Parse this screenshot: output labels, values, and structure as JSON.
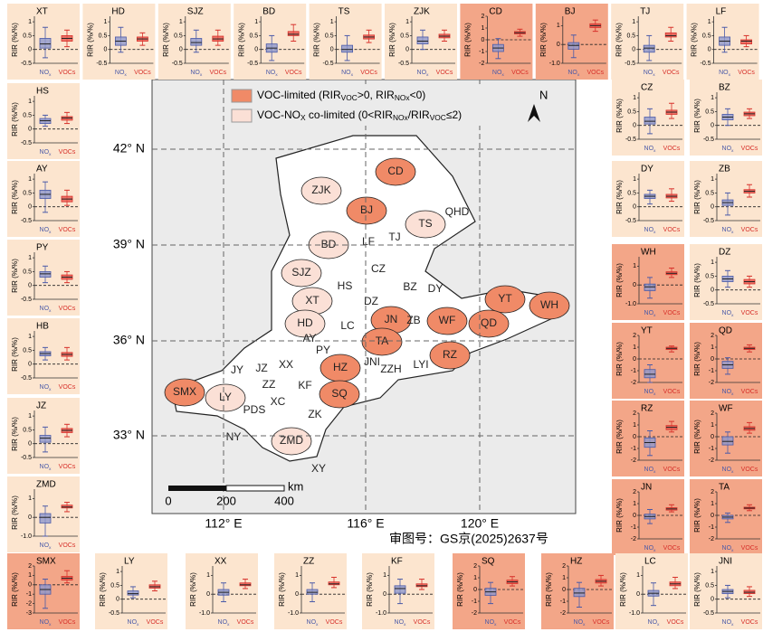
{
  "map": {
    "lat_labels": [
      "42° N",
      "39° N",
      "36° N",
      "33° N"
    ],
    "lon_labels": [
      "112° E",
      "116° E",
      "120° E"
    ],
    "north": "N",
    "legend": [
      {
        "color": "#f08a67",
        "parts": [
          "VOC-limited (RIR",
          "VOC",
          ">0, RIR",
          "NOx",
          "<0)"
        ]
      },
      {
        "color": "#fbe0d6",
        "parts": [
          "VOC-NO",
          "X",
          " co-limited (0<RIR",
          "NOx",
          "/RIR",
          "VOC",
          "≤2)"
        ]
      }
    ],
    "scale": {
      "ticks": [
        0,
        200,
        400
      ],
      "unit": "km"
    },
    "approval": "审图号：GS京(2025)2637号",
    "cities": [
      {
        "name": "CD",
        "color": "#f08a67"
      },
      {
        "name": "ZJK",
        "color": "#fbe0d6"
      },
      {
        "name": "BJ",
        "color": "#f08a67"
      },
      {
        "name": "QHD",
        "color": "#ffffff"
      },
      {
        "name": "TS",
        "color": "#fbe0d6"
      },
      {
        "name": "LF",
        "color": "#ffffff"
      },
      {
        "name": "TJ",
        "color": "#ffffff"
      },
      {
        "name": "BD",
        "color": "#fbe0d6"
      },
      {
        "name": "CZ",
        "color": "#ffffff"
      },
      {
        "name": "SJZ",
        "color": "#fbe0d6"
      },
      {
        "name": "XT",
        "color": "#fbe0d6"
      },
      {
        "name": "HS",
        "color": "#ffffff"
      },
      {
        "name": "BZ",
        "color": "#ffffff"
      },
      {
        "name": "DY",
        "color": "#ffffff"
      },
      {
        "name": "YT",
        "color": "#f08a67"
      },
      {
        "name": "WH",
        "color": "#f08a67"
      },
      {
        "name": "DZ",
        "color": "#ffffff"
      },
      {
        "name": "HD",
        "color": "#fbe0d6"
      },
      {
        "name": "LC",
        "color": "#ffffff"
      },
      {
        "name": "JN",
        "color": "#f08a67"
      },
      {
        "name": "ZB",
        "color": "#ffffff"
      },
      {
        "name": "WF",
        "color": "#f08a67"
      },
      {
        "name": "QD",
        "color": "#f08a67"
      },
      {
        "name": "TA",
        "color": "#f08a67"
      },
      {
        "name": "AY",
        "color": "#ffffff"
      },
      {
        "name": "PY",
        "color": "#ffffff"
      },
      {
        "name": "XX",
        "color": "#ffffff"
      },
      {
        "name": "JY",
        "color": "#ffffff"
      },
      {
        "name": "JZ",
        "color": "#ffffff"
      },
      {
        "name": "ZZ",
        "color": "#ffffff"
      },
      {
        "name": "KF",
        "color": "#ffffff"
      },
      {
        "name": "HZ",
        "color": "#f08a67"
      },
      {
        "name": "JNI",
        "color": "#ffffff"
      },
      {
        "name": "ZZH",
        "color": "#ffffff"
      },
      {
        "name": "LYI",
        "color": "#ffffff"
      },
      {
        "name": "RZ",
        "color": "#f08a67"
      },
      {
        "name": "SMX",
        "color": "#f08a67"
      },
      {
        "name": "LY",
        "color": "#fbe0d6"
      },
      {
        "name": "SQ",
        "color": "#f08a67"
      },
      {
        "name": "PDS",
        "color": "#ffffff"
      },
      {
        "name": "XC",
        "color": "#ffffff"
      },
      {
        "name": "ZK",
        "color": "#ffffff"
      },
      {
        "name": "NY",
        "color": "#ffffff"
      },
      {
        "name": "ZMD",
        "color": "#fbe0d6"
      },
      {
        "name": "XY",
        "color": "#ffffff"
      }
    ]
  },
  "y_label": "RIR (%/%)",
  "box_labels": [
    {
      "parts": [
        "NO",
        "x"
      ],
      "color": "#4a5aa8",
      "fill": "#8d97cc"
    },
    {
      "parts": [
        "VOCs"
      ],
      "color": "#d7302a",
      "fill": "#e8554c"
    }
  ],
  "panels": [
    {
      "name": "XT",
      "color": "#fce5cf",
      "ylim": [
        -0.5,
        1.2
      ],
      "yticks": [
        -0.5,
        0,
        0.5,
        1
      ],
      "nox": [
        -0.3,
        0.05,
        0.2,
        0.4,
        0.8
      ],
      "vocs": [
        0.1,
        0.3,
        0.4,
        0.5,
        0.7
      ]
    },
    {
      "name": "HD",
      "color": "#fce5cf",
      "ylim": [
        -0.5,
        1.2
      ],
      "yticks": [
        -0.5,
        0,
        0.5,
        1
      ],
      "nox": [
        -0.1,
        0.15,
        0.3,
        0.45,
        0.8
      ],
      "vocs": [
        0.15,
        0.3,
        0.38,
        0.45,
        0.6
      ]
    },
    {
      "name": "SJZ",
      "color": "#fce5cf",
      "ylim": [
        -0.5,
        1.2
      ],
      "yticks": [
        -0.5,
        0,
        0.5,
        1
      ],
      "nox": [
        -0.1,
        0.15,
        0.25,
        0.4,
        0.7
      ],
      "vocs": [
        0.15,
        0.3,
        0.38,
        0.48,
        0.7
      ]
    },
    {
      "name": "BD",
      "color": "#fce5cf",
      "ylim": [
        -0.5,
        1.2
      ],
      "yticks": [
        -0.5,
        0,
        0.5,
        1
      ],
      "nox": [
        -0.4,
        -0.1,
        0.05,
        0.2,
        0.5
      ],
      "vocs": [
        0.3,
        0.5,
        0.55,
        0.65,
        0.9
      ]
    },
    {
      "name": "TS",
      "color": "#fce5cf",
      "ylim": [
        -0.5,
        1.2
      ],
      "yticks": [
        -0.5,
        0,
        0.5,
        1
      ],
      "nox": [
        -0.4,
        -0.1,
        0.0,
        0.15,
        0.5
      ],
      "vocs": [
        0.25,
        0.38,
        0.45,
        0.52,
        0.7
      ]
    },
    {
      "name": "ZJK",
      "color": "#fce5cf",
      "ylim": [
        -0.5,
        1.2
      ],
      "yticks": [
        -0.5,
        0,
        0.5,
        1
      ],
      "nox": [
        0,
        0.2,
        0.3,
        0.45,
        0.7
      ],
      "vocs": [
        0.3,
        0.42,
        0.48,
        0.55,
        0.7
      ]
    },
    {
      "name": "CD",
      "color": "#f3a688",
      "ylim": [
        -2,
        2
      ],
      "yticks": [
        -2,
        -1,
        0,
        1,
        2
      ],
      "nox": [
        -1.6,
        -1.0,
        -0.7,
        -0.4,
        0.1
      ],
      "vocs": [
        0.3,
        0.5,
        0.6,
        0.7,
        0.9
      ]
    },
    {
      "name": "BJ",
      "color": "#f3a688",
      "ylim": [
        -1,
        1.5
      ],
      "yticks": [
        {
          "value": -1,
          "label": "-1.0"
        },
        0,
        1
      ],
      "nox": [
        -0.7,
        -0.25,
        -0.05,
        0.1,
        0.5
      ],
      "vocs": [
        0.7,
        0.9,
        1.0,
        1.1,
        1.3
      ]
    },
    {
      "name": "TJ",
      "color": "#fce5cf",
      "ylim": [
        -0.5,
        1.2
      ],
      "yticks": [
        -0.5,
        0,
        0.5,
        1
      ],
      "nox": [
        -0.4,
        -0.1,
        0.05,
        0.15,
        0.5
      ],
      "vocs": [
        0.3,
        0.45,
        0.5,
        0.6,
        0.8
      ]
    },
    {
      "name": "LF",
      "color": "#fce5cf",
      "ylim": [
        -0.5,
        1.2
      ],
      "yticks": [
        -0.5,
        0,
        0.5,
        1
      ],
      "nox": [
        -0.1,
        0.15,
        0.3,
        0.45,
        0.8
      ],
      "vocs": [
        0.1,
        0.2,
        0.3,
        0.35,
        0.5
      ]
    },
    {
      "name": "HS",
      "color": "#fce5cf",
      "ylim": [
        -0.5,
        1.2
      ],
      "yticks": [
        -0.5,
        0,
        0.5,
        1
      ],
      "nox": [
        0.1,
        0.2,
        0.3,
        0.38,
        0.5
      ],
      "vocs": [
        0.2,
        0.32,
        0.4,
        0.45,
        0.6
      ]
    },
    {
      "name": "AY",
      "color": "#fce5cf",
      "ylim": [
        -0.5,
        1.2
      ],
      "yticks": [
        -0.5,
        0,
        0.5,
        1
      ],
      "nox": [
        -0.2,
        0.3,
        0.45,
        0.6,
        0.9
      ],
      "vocs": [
        0.05,
        0.18,
        0.28,
        0.38,
        0.6
      ]
    },
    {
      "name": "PY",
      "color": "#fce5cf",
      "ylim": [
        -0.5,
        1.2
      ],
      "yticks": [
        -0.5,
        0,
        0.5,
        1
      ],
      "nox": [
        0.1,
        0.3,
        0.42,
        0.5,
        0.7
      ],
      "vocs": [
        0.1,
        0.22,
        0.3,
        0.38,
        0.5
      ]
    },
    {
      "name": "HB",
      "color": "#fce5cf",
      "ylim": [
        -0.5,
        1.2
      ],
      "yticks": [
        -0.5,
        0,
        0.5,
        1
      ],
      "nox": [
        0.15,
        0.3,
        0.38,
        0.45,
        0.6
      ],
      "vocs": [
        0.15,
        0.28,
        0.35,
        0.42,
        0.6
      ]
    },
    {
      "name": "JZ",
      "color": "#fce5cf",
      "ylim": [
        -0.5,
        1.2
      ],
      "yticks": [
        -0.5,
        0,
        0.5,
        1
      ],
      "nox": [
        -0.3,
        0.05,
        0.2,
        0.3,
        0.6
      ],
      "vocs": [
        0.25,
        0.4,
        0.48,
        0.55,
        0.7
      ]
    },
    {
      "name": "ZMD",
      "color": "#fce5cf",
      "ylim": [
        -1,
        1.5
      ],
      "yticks": [
        {
          "value": -1,
          "label": "-1.0"
        },
        0,
        1
      ],
      "nox": [
        -1.0,
        -0.3,
        0.0,
        0.2,
        0.6
      ],
      "vocs": [
        0.3,
        0.5,
        0.55,
        0.65,
        0.8
      ]
    },
    {
      "name": "CZ",
      "color": "#fce5cf",
      "ylim": [
        -0.5,
        1.2
      ],
      "yticks": [
        -0.5,
        0,
        0.5,
        1
      ],
      "nox": [
        -0.3,
        0.05,
        0.15,
        0.3,
        0.6
      ],
      "vocs": [
        0.25,
        0.4,
        0.48,
        0.55,
        0.8
      ]
    },
    {
      "name": "BZ",
      "color": "#fce5cf",
      "ylim": [
        -0.5,
        1.2
      ],
      "yticks": [
        -0.5,
        0,
        0.5,
        1
      ],
      "nox": [
        0.0,
        0.2,
        0.3,
        0.4,
        0.6
      ],
      "vocs": [
        0.25,
        0.35,
        0.42,
        0.48,
        0.6
      ]
    },
    {
      "name": "DY",
      "color": "#fce5cf",
      "ylim": [
        -0.5,
        1.2
      ],
      "yticks": [
        -0.5,
        0,
        0.5,
        1
      ],
      "nox": [
        0.1,
        0.3,
        0.38,
        0.45,
        0.6
      ],
      "vocs": [
        0.2,
        0.32,
        0.38,
        0.45,
        0.65
      ]
    },
    {
      "name": "ZB",
      "color": "#fce5cf",
      "ylim": [
        -0.5,
        1.2
      ],
      "yticks": [
        -0.5,
        0,
        0.5,
        1
      ],
      "nox": [
        -0.3,
        0.05,
        0.15,
        0.25,
        0.5
      ],
      "vocs": [
        0.35,
        0.5,
        0.56,
        0.62,
        0.8
      ]
    },
    {
      "name": "WH",
      "color": "#f3a688",
      "ylim": [
        -1,
        1.5
      ],
      "yticks": [
        {
          "value": -1,
          "label": "-1.0"
        },
        0,
        1
      ],
      "nox": [
        -0.7,
        -0.3,
        -0.1,
        0.05,
        0.4
      ],
      "vocs": [
        0.4,
        0.55,
        0.62,
        0.7,
        0.9
      ]
    },
    {
      "name": "DZ",
      "color": "#fce5cf",
      "ylim": [
        -0.5,
        1.2
      ],
      "yticks": [
        -0.5,
        0,
        0.5,
        1
      ],
      "nox": [
        0.1,
        0.3,
        0.4,
        0.5,
        0.7
      ],
      "vocs": [
        0.1,
        0.22,
        0.3,
        0.38,
        0.5
      ]
    },
    {
      "name": "YT",
      "color": "#f3a688",
      "ylim": [
        -2,
        2
      ],
      "yticks": [
        -2,
        -1,
        0,
        1,
        2
      ],
      "nox": [
        -2,
        -1.6,
        -1.3,
        -0.9,
        -0.5
      ],
      "vocs": [
        0.6,
        0.8,
        0.9,
        1.0,
        1.1
      ]
    },
    {
      "name": "QD",
      "color": "#f3a688",
      "ylim": [
        -2,
        2
      ],
      "yticks": [
        -2,
        -1,
        0,
        1,
        2
      ],
      "nox": [
        -1.3,
        -0.8,
        -0.5,
        -0.2,
        0.1
      ],
      "vocs": [
        0.6,
        0.8,
        0.9,
        1.0,
        1.2
      ]
    },
    {
      "name": "RZ",
      "color": "#f3a688",
      "ylim": [
        -2,
        2
      ],
      "yticks": [
        -2,
        -1,
        0,
        1,
        2
      ],
      "nox": [
        -1.6,
        -0.9,
        -0.5,
        -0.1,
        0.5
      ],
      "vocs": [
        0.4,
        0.6,
        0.8,
        0.95,
        1.3
      ]
    },
    {
      "name": "WF",
      "color": "#f3a688",
      "ylim": [
        -2,
        2
      ],
      "yticks": [
        -2,
        -1,
        0,
        1,
        2
      ],
      "nox": [
        -1.4,
        -0.7,
        -0.4,
        0.0,
        0.4
      ],
      "vocs": [
        0.3,
        0.55,
        0.7,
        0.85,
        1.2
      ]
    },
    {
      "name": "JN",
      "color": "#f3a688",
      "ylim": [
        -2,
        2
      ],
      "yticks": [
        -2,
        -1,
        0,
        1,
        2
      ],
      "nox": [
        -0.7,
        -0.3,
        -0.1,
        0.1,
        0.5
      ],
      "vocs": [
        0.3,
        0.45,
        0.55,
        0.65,
        0.9
      ]
    },
    {
      "name": "TA",
      "color": "#f3a688",
      "ylim": [
        -2,
        2
      ],
      "yticks": [
        -2,
        -1,
        0,
        1,
        2
      ],
      "nox": [
        -0.6,
        -0.3,
        -0.15,
        0.0,
        0.2
      ],
      "vocs": [
        0.4,
        0.55,
        0.62,
        0.7,
        0.9
      ]
    },
    {
      "name": "SMX",
      "color": "#f3a688",
      "ylim": [
        -3,
        2
      ],
      "yticks": [
        -3,
        -2,
        -1,
        0,
        1,
        2
      ],
      "nox": [
        -2.5,
        -1.0,
        -0.5,
        0.0,
        0.6
      ],
      "vocs": [
        0.2,
        0.5,
        0.7,
        0.9,
        1.5
      ]
    },
    {
      "name": "LY",
      "color": "#fce5cf",
      "ylim": [
        -0.5,
        1.2
      ],
      "yticks": [
        -0.5,
        0,
        0.5,
        1
      ],
      "nox": [
        0.05,
        0.15,
        0.2,
        0.3,
        0.45
      ],
      "vocs": [
        0.3,
        0.4,
        0.45,
        0.52,
        0.65
      ]
    },
    {
      "name": "XX",
      "color": "#fce5cf",
      "ylim": [
        -1,
        1.5
      ],
      "yticks": [
        {
          "value": -1,
          "label": "-1.0"
        },
        0,
        1
      ],
      "nox": [
        -0.4,
        -0.05,
        0.1,
        0.25,
        0.6
      ],
      "vocs": [
        0.3,
        0.45,
        0.5,
        0.6,
        0.8
      ]
    },
    {
      "name": "ZZ",
      "color": "#fce5cf",
      "ylim": [
        -1,
        1.5
      ],
      "yticks": [
        {
          "value": -1,
          "label": "-1.0"
        },
        0,
        1
      ],
      "nox": [
        -0.4,
        0.0,
        0.1,
        0.25,
        0.6
      ],
      "vocs": [
        0.35,
        0.5,
        0.55,
        0.65,
        0.9
      ]
    },
    {
      "name": "KF",
      "color": "#fce5cf",
      "ylim": [
        -1,
        1.5
      ],
      "yticks": [
        {
          "value": -1,
          "label": "-1.0"
        },
        0,
        1
      ],
      "nox": [
        -0.5,
        0.05,
        0.3,
        0.45,
        0.8
      ],
      "vocs": [
        0.25,
        0.4,
        0.45,
        0.55,
        0.8
      ]
    },
    {
      "name": "SQ",
      "color": "#f3a688",
      "ylim": [
        -2,
        2
      ],
      "yticks": [
        -2,
        -1,
        0,
        1,
        2
      ],
      "nox": [
        -1.2,
        -0.5,
        -0.2,
        0.1,
        0.6
      ],
      "vocs": [
        0.3,
        0.5,
        0.65,
        0.8,
        1.1
      ]
    },
    {
      "name": "HZ",
      "color": "#f3a688",
      "ylim": [
        -2,
        2
      ],
      "yticks": [
        -2,
        -1,
        0,
        1,
        2
      ],
      "nox": [
        -1.5,
        -0.6,
        -0.3,
        0.1,
        0.6
      ],
      "vocs": [
        0.3,
        0.55,
        0.7,
        0.85,
        1.2
      ]
    },
    {
      "name": "LC",
      "color": "#fce5cf",
      "ylim": [
        -1,
        1.5
      ],
      "yticks": [
        {
          "value": -1,
          "label": "-1.0"
        },
        0,
        1
      ],
      "nox": [
        -0.6,
        -0.1,
        0.05,
        0.2,
        0.6
      ],
      "vocs": [
        0.3,
        0.45,
        0.55,
        0.65,
        0.9
      ]
    },
    {
      "name": "JNI",
      "color": "#fce5cf",
      "ylim": [
        -0.5,
        1.2
      ],
      "yticks": [
        -0.5,
        0,
        0.5,
        1
      ],
      "nox": [
        0.05,
        0.2,
        0.28,
        0.35,
        0.5
      ],
      "vocs": [
        0.1,
        0.2,
        0.25,
        0.32,
        0.45
      ]
    }
  ]
}
